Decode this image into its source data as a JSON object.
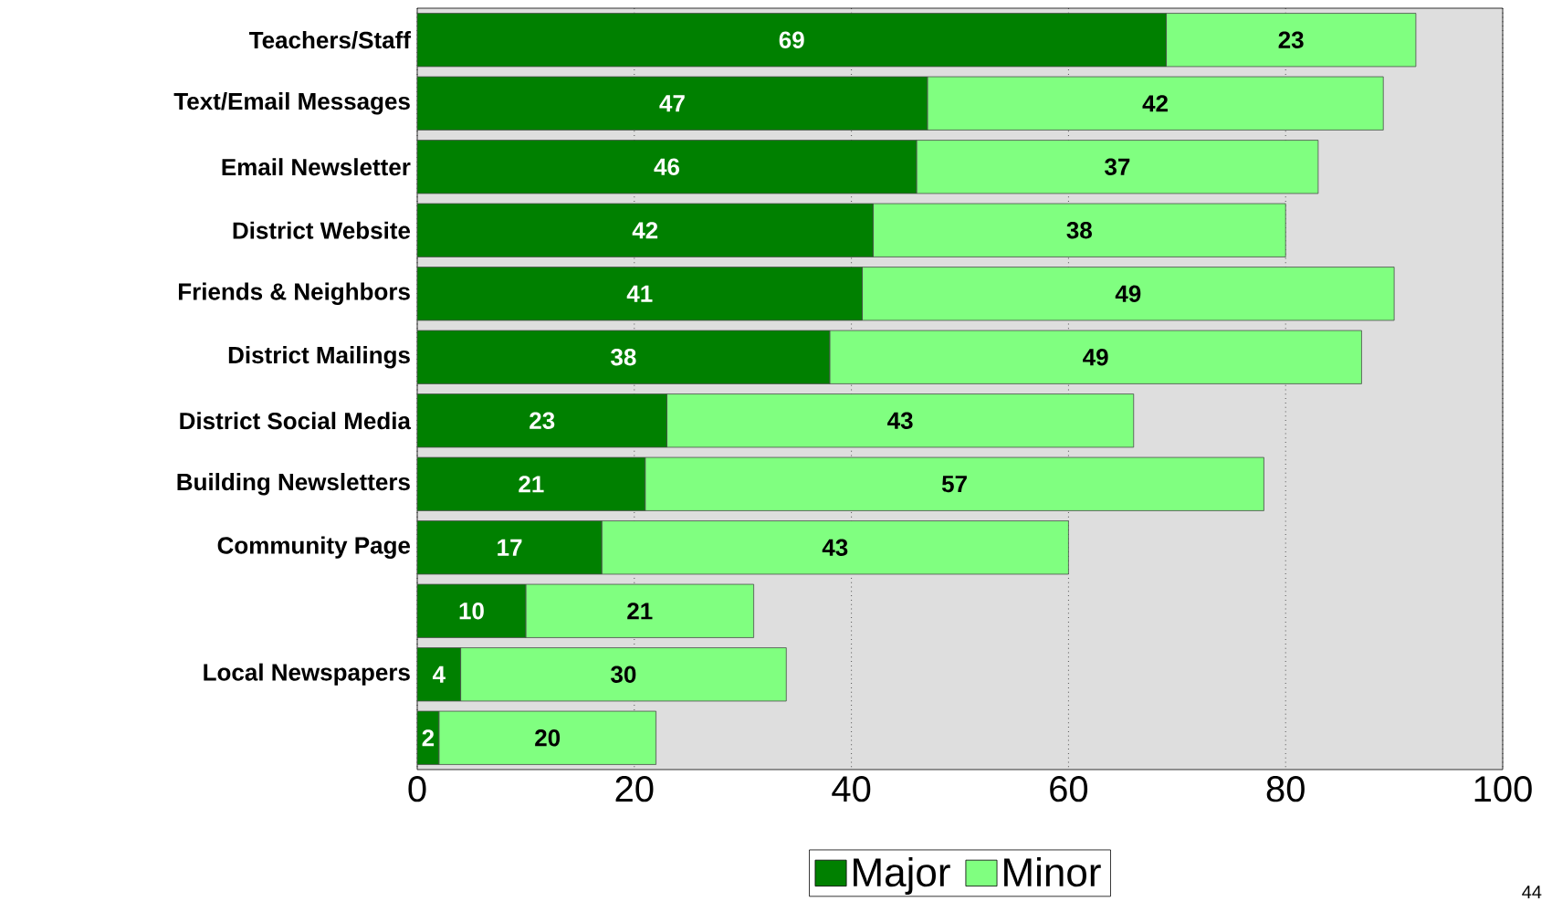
{
  "chart_data": {
    "type": "bar",
    "orientation": "horizontal",
    "stacked": true,
    "categories": [
      "Teachers/Staff",
      "Text/Email Messages",
      "Email Newsletter",
      "District Website",
      "Friends & Neighbors",
      "District Mailings",
      "District Social Media",
      "Building Newsletters",
      "Community Page",
      null,
      "Local Newspapers",
      null
    ],
    "series": [
      {
        "name": "Major",
        "color": "#008000",
        "values": [
          69,
          47,
          46,
          42,
          41,
          38,
          23,
          21,
          17,
          10,
          4,
          2
        ]
      },
      {
        "name": "Minor",
        "color": "#80ff80",
        "values": [
          23,
          42,
          37,
          38,
          49,
          49,
          43,
          57,
          43,
          21,
          30,
          20
        ]
      }
    ],
    "xlim": [
      0,
      100
    ],
    "xticks": [
      0,
      20,
      40,
      60,
      80,
      100
    ],
    "grid": "x",
    "legend": "bottom",
    "data_labels": true,
    "annotations": [
      "44"
    ]
  }
}
